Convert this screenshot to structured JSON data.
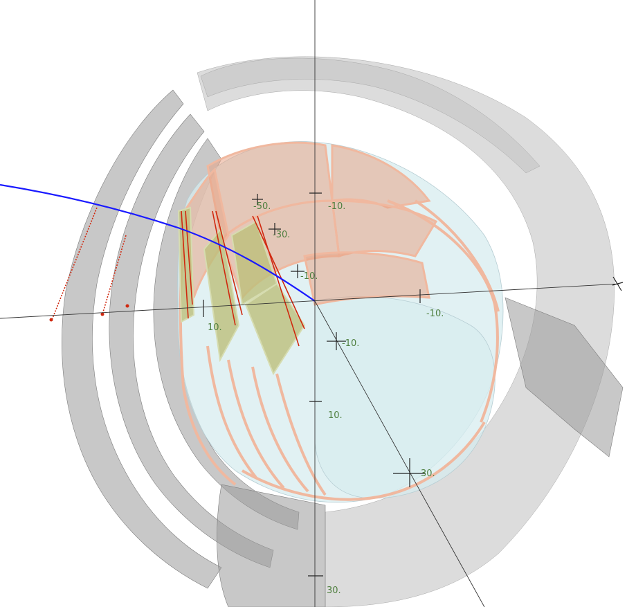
{
  "scene": {
    "tick_labels": {
      "top_a": "-50.",
      "top_b": "-10.",
      "mid_a": "-30.",
      "mid_b": "-10.",
      "right_a": "-10.",
      "center_a": "-10.",
      "left_a": "10.",
      "lower_a": "10.",
      "lower_b": "30.",
      "bottom_a": "30."
    }
  },
  "colors": {
    "background": "#ffffff",
    "gray_shell": "#9a9a9a",
    "cylinder_fill": "#d7ecef",
    "cylinder_edge": "#f0b89f",
    "olive_panel": "#bdbf7b",
    "curve_blue": "#1a1aff",
    "red_lines": "#d0280f",
    "tick_text": "#4f7f3f"
  }
}
